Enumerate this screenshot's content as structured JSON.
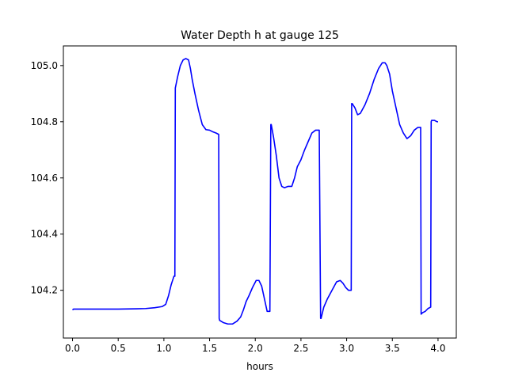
{
  "chart_data": {
    "type": "line",
    "title": "Water Depth h at gauge 125",
    "xlabel": "hours",
    "ylabel": "",
    "xlim": [
      -0.1,
      4.2
    ],
    "ylim": [
      104.03,
      105.07
    ],
    "grid": false,
    "x_ticks": [
      0.0,
      0.5,
      1.0,
      1.5,
      2.0,
      2.5,
      3.0,
      3.5,
      4.0
    ],
    "x_tick_labels": [
      "0.0",
      "0.5",
      "1.0",
      "1.5",
      "2.0",
      "2.5",
      "3.0",
      "3.5",
      "4.0"
    ],
    "y_ticks": [
      104.2,
      104.4,
      104.6,
      104.8,
      105.0
    ],
    "y_tick_labels": [
      "104.2",
      "104.4",
      "104.6",
      "104.8",
      "105.0"
    ],
    "line_color": "#0000ff",
    "series": [
      {
        "x": [
          0.0,
          0.01,
          0.1,
          0.3,
          0.5,
          0.7,
          0.8,
          0.9,
          0.98,
          1.02,
          1.05,
          1.08,
          1.11,
          1.12,
          1.125,
          1.15,
          1.18,
          1.21,
          1.24,
          1.27,
          1.29,
          1.31,
          1.34,
          1.38,
          1.42,
          1.46,
          1.5,
          1.53,
          1.57,
          1.6,
          1.605,
          1.61,
          1.65,
          1.7,
          1.75,
          1.8,
          1.84,
          1.87,
          1.9,
          1.93,
          1.97,
          2.01,
          2.04,
          2.07,
          2.1,
          2.13,
          2.16,
          2.17,
          2.175,
          2.2,
          2.23,
          2.26,
          2.29,
          2.32,
          2.36,
          2.4,
          2.43,
          2.46,
          2.5,
          2.54,
          2.58,
          2.62,
          2.66,
          2.7,
          2.715,
          2.72,
          2.75,
          2.79,
          2.84,
          2.89,
          2.93,
          2.96,
          2.99,
          3.02,
          3.05,
          3.055,
          3.06,
          3.09,
          3.12,
          3.15,
          3.2,
          3.25,
          3.3,
          3.35,
          3.39,
          3.42,
          3.44,
          3.47,
          3.5,
          3.54,
          3.58,
          3.62,
          3.66,
          3.7,
          3.74,
          3.78,
          3.8,
          3.81,
          3.815,
          3.83,
          3.86,
          3.89,
          3.92,
          3.925,
          3.93,
          3.96,
          3.99,
          4.0
        ],
        "y": [
          104.13,
          104.133,
          104.133,
          104.133,
          104.133,
          104.134,
          104.135,
          104.138,
          104.142,
          104.15,
          104.18,
          104.22,
          104.25,
          104.25,
          104.92,
          104.96,
          105.0,
          105.02,
          105.025,
          105.02,
          104.99,
          104.95,
          104.9,
          104.84,
          104.79,
          104.772,
          104.77,
          104.765,
          104.76,
          104.755,
          104.1,
          104.093,
          104.085,
          104.08,
          104.08,
          104.09,
          104.105,
          104.13,
          104.16,
          104.18,
          104.21,
          104.235,
          104.235,
          104.215,
          104.17,
          104.125,
          104.125,
          104.79,
          104.79,
          104.745,
          104.68,
          104.6,
          104.57,
          104.565,
          104.57,
          104.57,
          104.6,
          104.64,
          104.665,
          104.7,
          104.73,
          104.76,
          104.77,
          104.77,
          104.1,
          104.1,
          104.14,
          104.17,
          104.2,
          104.23,
          104.235,
          104.225,
          104.21,
          104.2,
          104.2,
          104.865,
          104.865,
          104.85,
          104.825,
          104.83,
          104.86,
          104.9,
          104.95,
          104.99,
          105.01,
          105.01,
          105.0,
          104.97,
          104.91,
          104.85,
          104.79,
          104.76,
          104.74,
          104.75,
          104.77,
          104.78,
          104.78,
          104.78,
          104.115,
          104.12,
          104.125,
          104.135,
          104.14,
          104.8,
          104.805,
          104.805,
          104.8,
          104.8
        ]
      }
    ]
  }
}
